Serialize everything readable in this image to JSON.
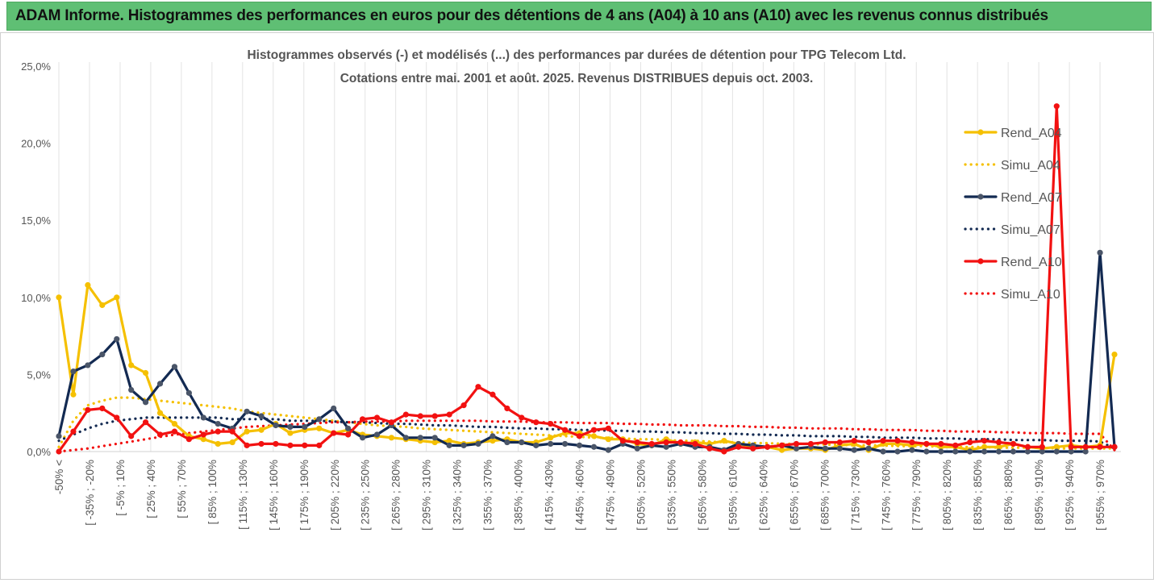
{
  "header": {
    "title": "ADAM Informe. Histogrammes des performances en euros pour des détentions de 4 ans (A04) à 10 ans (A10) avec les revenus connus distribués"
  },
  "colors": {
    "header_bg": "#5fbf74",
    "A04": "#f5c000",
    "A07": "#132a52",
    "A10": "#f21111"
  },
  "chart_data": {
    "type": "line",
    "title": "Histogrammes observés (-) et modélisés (...) des performances par durées de détention pour TPG Telecom Ltd.",
    "subtitle": "Cotations entre mai. 2001 et août. 2025. Revenus DISTRIBUES depuis oct. 2003.",
    "y_ticks": [
      "0,0%",
      "5,0%",
      "10,0%",
      "15,0%",
      "20,0%",
      "25,0%"
    ],
    "ylim": [
      0,
      25
    ],
    "y_unit": "%",
    "grid": "vertical",
    "legend_position": "right",
    "x_ticks": [
      "-50% <",
      "[ -35% ; -20%",
      "[ -5% ; 10%",
      "[ 25% ; 40%",
      "[ 55% ; 70%",
      "[ 85% ; 100%",
      "[ 115% ; 130%",
      "[ 145% ; 160%",
      "[ 175% ; 190%",
      "[ 205% ; 220%",
      "[ 235% ; 250%",
      "[ 265% ; 280%",
      "[ 295% ; 310%",
      "[ 325% ; 340%",
      "[ 355% ; 370%",
      "[ 385% ; 400%",
      "[ 415% ; 430%",
      "[ 445% ; 460%",
      "[ 475% ; 490%",
      "[ 505% ; 520%",
      "[ 535% ; 550%",
      "[ 565% ; 580%",
      "[ 595% ; 610%",
      "[ 625% ; 640%",
      "[ 655% ; 670%",
      "[ 685% ; 700%",
      "[ 715% ; 730%",
      "[ 745% ; 760%",
      "[ 775% ; 790%",
      "[ 805% ; 820%",
      "[ 835% ; 850%",
      "[ 865% ; 880%",
      "[ 895% ; 910%",
      "[ 925% ; 940%",
      "[ 955% ; 970%"
    ],
    "series": [
      {
        "name": "Rend_A04",
        "style": "solid",
        "color": "#f5c000",
        "values": [
          10.0,
          3.7,
          10.8,
          9.5,
          10.0,
          5.6,
          5.1,
          2.5,
          1.8,
          1.0,
          0.8,
          0.5,
          0.6,
          1.3,
          1.4,
          1.8,
          1.2,
          1.4,
          1.5,
          1.2,
          1.4,
          1.1,
          1.0,
          0.9,
          0.8,
          0.7,
          0.6,
          0.7,
          0.5,
          0.6,
          0.7,
          0.8,
          0.6,
          0.6,
          0.9,
          1.2,
          1.2,
          1.0,
          0.8,
          0.8,
          0.5,
          0.4,
          0.8,
          0.5,
          0.6,
          0.5,
          0.7,
          0.5,
          0.3,
          0.3,
          0.1,
          0.2,
          0.2,
          0.1,
          0.4,
          0.5,
          0.1,
          0.5,
          0.5,
          0.4,
          0.5,
          0.3,
          0.3,
          0.1,
          0.3,
          0.3,
          0.5,
          0.3,
          0.2,
          0.3,
          0.4,
          0.3,
          0.4,
          6.3
        ]
      },
      {
        "name": "Simu_A04",
        "style": "dotted",
        "color": "#f5c000",
        "values": [
          0.3,
          2.0,
          3.0,
          3.3,
          3.5,
          3.5,
          3.4,
          3.3,
          3.2,
          3.1,
          3.0,
          2.9,
          2.8,
          2.6,
          2.5,
          2.4,
          2.3,
          2.2,
          2.1,
          2.0,
          1.9,
          1.8,
          1.7,
          1.65,
          1.6,
          1.5,
          1.45,
          1.4,
          1.35,
          1.3,
          1.25,
          1.2,
          1.15,
          1.1,
          1.05,
          1.0,
          0.95,
          0.9,
          0.9,
          0.85,
          0.8,
          0.8,
          0.75,
          0.7,
          0.7,
          0.65,
          0.6,
          0.6,
          0.55,
          0.55,
          0.5,
          0.5,
          0.5,
          0.45,
          0.45,
          0.4,
          0.4,
          0.4,
          0.35,
          0.35,
          0.35,
          0.3,
          0.3,
          0.3,
          0.3,
          0.25,
          0.25,
          0.25,
          0.25,
          0.2,
          0.2,
          0.2,
          0.2,
          0.2
        ]
      },
      {
        "name": "Rend_A07",
        "style": "solid",
        "color": "#132a52",
        "values": [
          1.0,
          5.2,
          5.6,
          6.3,
          7.3,
          4.0,
          3.2,
          4.4,
          5.5,
          3.8,
          2.2,
          1.8,
          1.5,
          2.6,
          2.3,
          1.7,
          1.6,
          1.6,
          2.1,
          2.8,
          1.5,
          0.9,
          1.1,
          1.7,
          0.9,
          0.9,
          0.9,
          0.4,
          0.4,
          0.5,
          1.0,
          0.6,
          0.6,
          0.4,
          0.5,
          0.5,
          0.4,
          0.3,
          0.1,
          0.5,
          0.2,
          0.4,
          0.3,
          0.5,
          0.3,
          0.3,
          0.1,
          0.5,
          0.4,
          0.3,
          0.4,
          0.2,
          0.3,
          0.2,
          0.2,
          0.1,
          0.2,
          0.0,
          0.0,
          0.1,
          0.0,
          0.0,
          0.0,
          0.0,
          0.0,
          0.0,
          0.0,
          0.0,
          0.0,
          0.0,
          0.0,
          0.0,
          12.9,
          0.3
        ]
      },
      {
        "name": "Simu_A07",
        "style": "dotted",
        "color": "#132a52",
        "values": [
          0.7,
          1.1,
          1.5,
          1.8,
          2.0,
          2.1,
          2.2,
          2.2,
          2.2,
          2.2,
          2.2,
          2.2,
          2.1,
          2.1,
          2.1,
          2.1,
          2.0,
          2.0,
          2.0,
          1.95,
          1.9,
          1.9,
          1.85,
          1.8,
          1.8,
          1.75,
          1.7,
          1.7,
          1.65,
          1.6,
          1.6,
          1.55,
          1.5,
          1.5,
          1.45,
          1.45,
          1.4,
          1.4,
          1.35,
          1.35,
          1.3,
          1.3,
          1.25,
          1.25,
          1.2,
          1.2,
          1.15,
          1.15,
          1.1,
          1.1,
          1.05,
          1.05,
          1.0,
          1.0,
          1.0,
          0.95,
          0.95,
          0.9,
          0.9,
          0.9,
          0.85,
          0.85,
          0.85,
          0.8,
          0.8,
          0.8,
          0.75,
          0.75,
          0.75,
          0.7,
          0.7,
          0.7,
          0.65,
          0.2
        ]
      },
      {
        "name": "Rend_A10",
        "style": "solid",
        "color": "#f21111",
        "values": [
          0.0,
          1.3,
          2.7,
          2.8,
          2.2,
          1.0,
          1.9,
          1.1,
          1.3,
          0.8,
          1.1,
          1.3,
          1.3,
          0.4,
          0.5,
          0.5,
          0.4,
          0.4,
          0.4,
          1.2,
          1.1,
          2.1,
          2.2,
          1.9,
          2.4,
          2.3,
          2.3,
          2.4,
          3.0,
          4.2,
          3.7,
          2.8,
          2.2,
          1.9,
          1.8,
          1.4,
          1.0,
          1.4,
          1.5,
          0.7,
          0.6,
          0.5,
          0.6,
          0.6,
          0.5,
          0.2,
          0.0,
          0.3,
          0.2,
          0.3,
          0.4,
          0.5,
          0.5,
          0.6,
          0.6,
          0.7,
          0.6,
          0.7,
          0.7,
          0.6,
          0.5,
          0.5,
          0.4,
          0.6,
          0.7,
          0.6,
          0.5,
          0.3,
          0.3,
          22.4,
          0.3,
          0.3,
          0.3,
          0.3
        ]
      },
      {
        "name": "Simu_A10",
        "style": "dotted",
        "color": "#f21111",
        "values": [
          0.0,
          0.1,
          0.2,
          0.35,
          0.5,
          0.65,
          0.8,
          0.95,
          1.1,
          1.2,
          1.3,
          1.4,
          1.5,
          1.6,
          1.65,
          1.7,
          1.75,
          1.8,
          1.85,
          1.9,
          1.9,
          1.95,
          1.95,
          1.95,
          2.0,
          2.0,
          2.0,
          2.0,
          2.0,
          2.0,
          1.95,
          1.95,
          1.95,
          1.9,
          1.9,
          1.9,
          1.85,
          1.85,
          1.85,
          1.8,
          1.8,
          1.75,
          1.75,
          1.7,
          1.7,
          1.7,
          1.65,
          1.65,
          1.6,
          1.6,
          1.55,
          1.55,
          1.5,
          1.5,
          1.5,
          1.45,
          1.45,
          1.4,
          1.4,
          1.4,
          1.35,
          1.35,
          1.3,
          1.3,
          1.3,
          1.25,
          1.25,
          1.2,
          1.2,
          1.2,
          1.15,
          1.15,
          1.15,
          0.1
        ]
      }
    ]
  }
}
